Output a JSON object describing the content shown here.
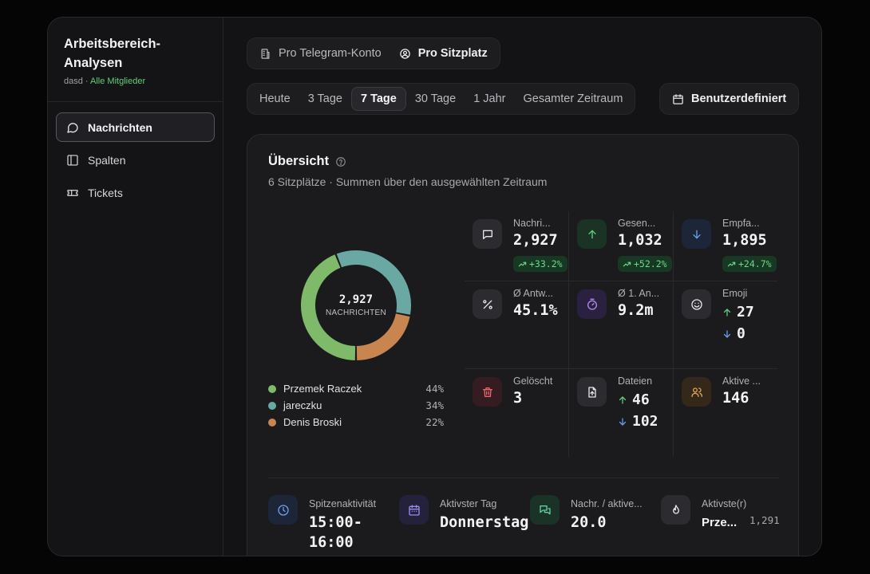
{
  "sidebar": {
    "title_line1": "Arbeitsbereich-",
    "title_line2": "Analysen",
    "subtitle_user": "dasd",
    "subtitle_sep": " · ",
    "subtitle_scope": "Alle Mitglieder",
    "items": [
      {
        "label": "Nachrichten",
        "icon": "message-icon",
        "active": true
      },
      {
        "label": "Spalten",
        "icon": "columns-icon",
        "active": false
      },
      {
        "label": "Tickets",
        "icon": "ticket-icon",
        "active": false
      }
    ]
  },
  "view_toggle": {
    "options": [
      {
        "label": "Pro Telegram-Konto",
        "icon": "building-icon",
        "active": false
      },
      {
        "label": "Pro Sitzplatz",
        "icon": "user-circle-icon",
        "active": true
      }
    ]
  },
  "range": {
    "options": [
      "Heute",
      "3 Tage",
      "7 Tage",
      "30 Tage",
      "1 Jahr",
      "Gesamter Zeitraum"
    ],
    "active_index": 2,
    "custom_label": "Benutzerdefiniert"
  },
  "overview": {
    "title": "Übersicht",
    "subtitle": "6 Sitzplätze · Summen über den ausgewählten Zeitraum",
    "donut_total": "2,927",
    "donut_label": "NACHRICHTEN"
  },
  "chart_data": {
    "type": "pie",
    "donut": true,
    "center_value": "2,927",
    "center_label": "NACHRICHTEN",
    "categories": [
      "Przemek Raczek",
      "jareczku",
      "Denis Broski"
    ],
    "values": [
      44,
      34,
      22
    ],
    "labels": [
      "44%",
      "34%",
      "22%"
    ],
    "colors": [
      "#7fba6a",
      "#6aa8a4",
      "#c98550"
    ]
  },
  "stats": {
    "messages": {
      "label": "Nachri...",
      "value": "2,927",
      "badge": "+33.2%"
    },
    "sent": {
      "label": "Gesen...",
      "value": "1,032",
      "badge": "+52.2%"
    },
    "received": {
      "label": "Empfa...",
      "value": "1,895",
      "badge": "+24.7%"
    },
    "reply_rate": {
      "label": "Ø Antw...",
      "value": "45.1%"
    },
    "first_reply": {
      "label": "Ø 1. An...",
      "value": "9.2m"
    },
    "emoji": {
      "label": "Emoji",
      "up": "27",
      "down": "0"
    },
    "deleted": {
      "label": "Gelöscht",
      "value": "3"
    },
    "files": {
      "label": "Dateien",
      "up": "46",
      "down": "102"
    },
    "active": {
      "label": "Aktive ...",
      "value": "146"
    }
  },
  "bottom": {
    "peak": {
      "label": "Spitzenaktivität",
      "value_line1": "15:00-",
      "value_line2": "16:00"
    },
    "day": {
      "label": "Aktivster Tag",
      "value": "Donnerstag"
    },
    "per_active": {
      "label": "Nachr. / aktive...",
      "value": "20.0"
    },
    "top_member": {
      "label": "Aktivste(r)",
      "value": "Prze...",
      "count": "1,291"
    }
  },
  "colors": {
    "accent_green": "#5fd17a",
    "badge_bg": "#173822"
  }
}
